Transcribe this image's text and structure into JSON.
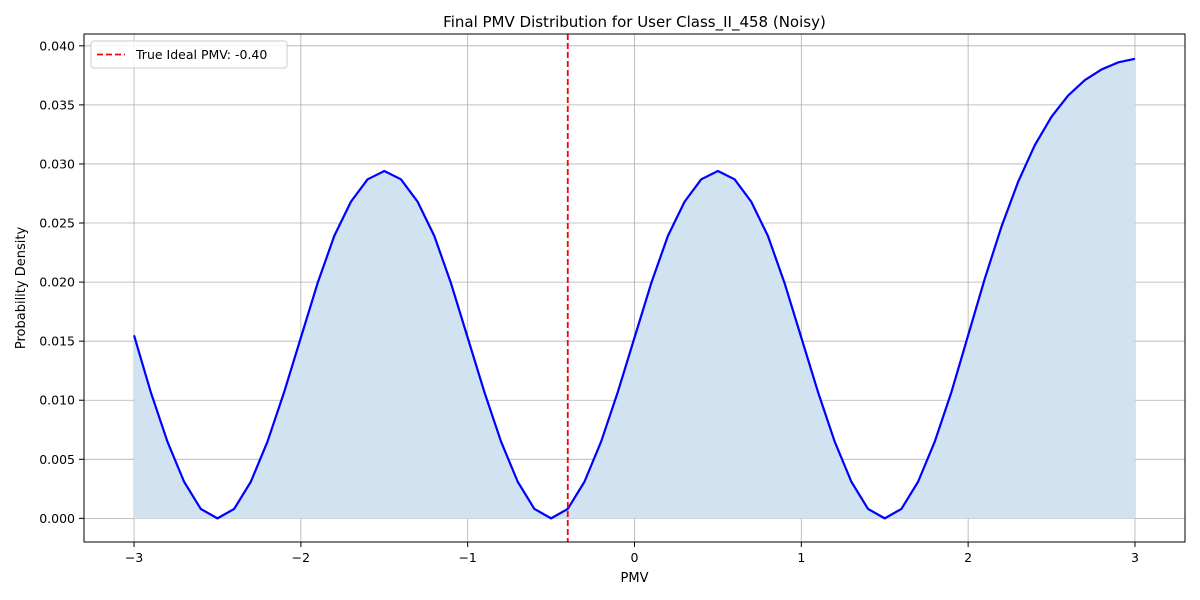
{
  "chart_data": {
    "type": "area",
    "title": "Final PMV Distribution for User Class_II_458 (Noisy)",
    "xlabel": "PMV",
    "ylabel": "Probability Density",
    "xlim": [
      -3.3,
      3.3
    ],
    "ylim": [
      -0.002,
      0.041
    ],
    "x_ticks": [
      -3,
      -2,
      -1,
      0,
      1,
      2,
      3
    ],
    "x_tick_labels": [
      "−3",
      "−2",
      "−1",
      "0",
      "1",
      "2",
      "3"
    ],
    "y_ticks": [
      0.0,
      0.005,
      0.01,
      0.015,
      0.02,
      0.025,
      0.03,
      0.035,
      0.04
    ],
    "y_tick_labels": [
      "0.000",
      "0.005",
      "0.010",
      "0.015",
      "0.020",
      "0.025",
      "0.030",
      "0.035",
      "0.040"
    ],
    "grid": true,
    "legend_position": "top-left",
    "series": [
      {
        "color": "#0000ff",
        "fill_color": "#d1e3f0",
        "x": [
          -3.0,
          -2.9,
          -2.8,
          -2.7,
          -2.6,
          -2.5,
          -2.4,
          -2.3,
          -2.2,
          -2.1,
          -2.0,
          -1.9,
          -1.8,
          -1.7,
          -1.6,
          -1.5,
          -1.4,
          -1.3,
          -1.2,
          -1.1,
          -1.0,
          -0.9,
          -0.8,
          -0.7,
          -0.6,
          -0.5,
          -0.4,
          -0.3,
          -0.2,
          -0.1,
          0.0,
          0.1,
          0.2,
          0.3,
          0.4,
          0.5,
          0.6,
          0.7,
          0.8,
          0.9,
          1.0,
          1.1,
          1.2,
          1.3,
          1.4,
          1.5,
          1.6,
          1.7,
          1.8,
          1.9,
          2.0,
          2.1,
          2.2,
          2.3,
          2.4,
          2.5,
          2.6,
          2.7,
          2.8,
          2.9,
          3.0
        ],
        "y": [
          0.0155,
          0.0107,
          0.0065,
          0.0031,
          0.0008,
          0.0,
          0.0008,
          0.0031,
          0.0065,
          0.0107,
          0.0153,
          0.0199,
          0.0239,
          0.0268,
          0.0287,
          0.0294,
          0.0287,
          0.0268,
          0.0239,
          0.0199,
          0.0153,
          0.0107,
          0.0065,
          0.0031,
          0.0008,
          0.0,
          0.0008,
          0.0031,
          0.0065,
          0.0107,
          0.0153,
          0.0199,
          0.0239,
          0.0268,
          0.0287,
          0.0294,
          0.0287,
          0.0268,
          0.0239,
          0.0199,
          0.0153,
          0.0107,
          0.0065,
          0.0031,
          0.0008,
          0.0,
          0.0008,
          0.0031,
          0.0065,
          0.0107,
          0.0155,
          0.0203,
          0.0247,
          0.0285,
          0.0316,
          0.034,
          0.0358,
          0.0371,
          0.038,
          0.0386,
          0.0389
        ]
      }
    ],
    "reference_line": {
      "x": -0.4,
      "color": "#ff0000",
      "style": "dashed",
      "label": "True Ideal PMV: -0.40"
    }
  }
}
